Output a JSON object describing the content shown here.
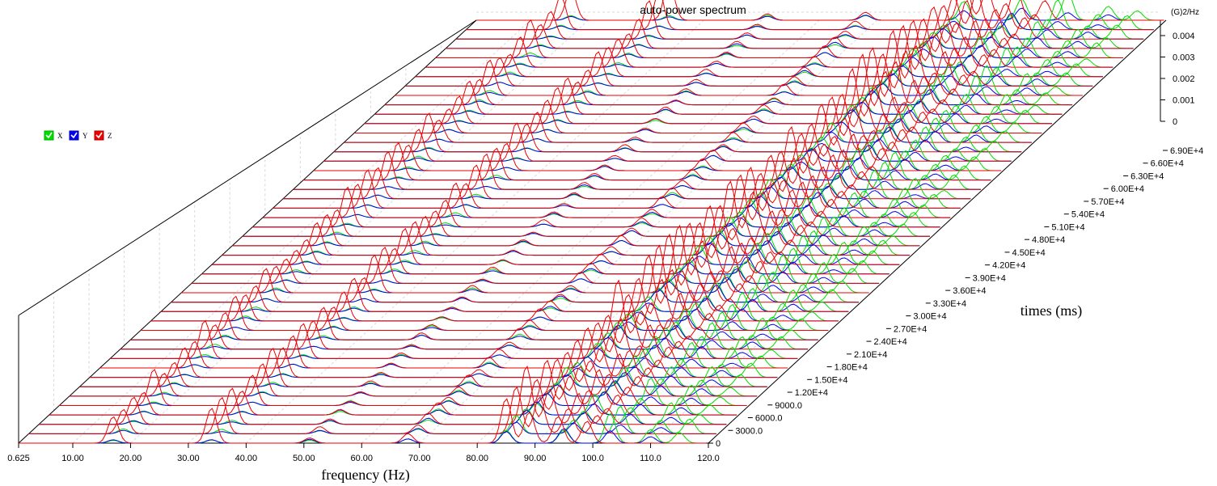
{
  "chart_data": {
    "type": "waterfall-line",
    "title": "auto-power spectrum",
    "xlabel": "frequency (Hz)",
    "zlabel": "times (ms)",
    "yunit": "(G)2/Hz",
    "x_ticks": [
      "0.625",
      "10.00",
      "20.00",
      "30.00",
      "40.00",
      "50.00",
      "60.00",
      "70.00",
      "80.00",
      "90.00",
      "100.0",
      "110.0",
      "120.0"
    ],
    "x_range": [
      0.625,
      120.0
    ],
    "time_ticks": [
      "0",
      "3000.0",
      "6000.0",
      "9000.0",
      "1.20E+4",
      "1.50E+4",
      "1.80E+4",
      "2.10E+4",
      "2.40E+4",
      "2.70E+4",
      "3.00E+4",
      "3.30E+4",
      "3.60E+4",
      "3.90E+4",
      "4.20E+4",
      "4.50E+4",
      "4.80E+4",
      "5.10E+4",
      "5.40E+4",
      "5.70E+4",
      "6.00E+4",
      "6.30E+4",
      "6.60E+4",
      "6.90E+4"
    ],
    "time_range": [
      0,
      69000
    ],
    "y_ticks": [
      "0",
      "0.001",
      "0.002",
      "0.003",
      "0.004"
    ],
    "y_range": [
      0,
      0.0045
    ],
    "num_slices": 46,
    "legend": {
      "placement": "left",
      "items": [
        {
          "name": "X",
          "color": "#00dd00"
        },
        {
          "name": "Y",
          "color": "#0000ee"
        },
        {
          "name": "Z",
          "color": "#ee0000"
        }
      ]
    },
    "series": [
      {
        "name": "X",
        "color": "#00dd00",
        "peaks": [
          {
            "f": 17,
            "a": 0.0002
          },
          {
            "f": 34,
            "a": 0.0002
          },
          {
            "f": 51,
            "a": 0.0002
          },
          {
            "f": 68,
            "a": 0.00025
          },
          {
            "f": 85,
            "a": 0.0008
          },
          {
            "f": 95,
            "a": 0.0009
          },
          {
            "f": 103,
            "a": 0.0012
          },
          {
            "f": 110,
            "a": 0.0009
          },
          {
            "f": 115,
            "a": 0.0006
          }
        ]
      },
      {
        "name": "Y",
        "color": "#0000ee",
        "peaks": [
          {
            "f": 17,
            "a": 0.00015
          },
          {
            "f": 34,
            "a": 0.00015
          },
          {
            "f": 51,
            "a": 0.0002
          },
          {
            "f": 68,
            "a": 0.00025
          },
          {
            "f": 85,
            "a": 0.0006
          },
          {
            "f": 95,
            "a": 0.0007
          },
          {
            "f": 103,
            "a": 0.0005
          },
          {
            "f": 110,
            "a": 0.0003
          }
        ]
      },
      {
        "name": "Z",
        "color": "#ee0000",
        "peaks": [
          {
            "f": 17,
            "a": 0.0016
          },
          {
            "f": 34,
            "a": 0.0016
          },
          {
            "f": 51,
            "a": 0.0003
          },
          {
            "f": 68,
            "a": 0.0005
          },
          {
            "f": 85,
            "a": 0.0024
          },
          {
            "f": 89,
            "a": 0.0018
          },
          {
            "f": 94,
            "a": 0.0015
          },
          {
            "f": 99,
            "a": 0.0009
          }
        ]
      }
    ]
  }
}
